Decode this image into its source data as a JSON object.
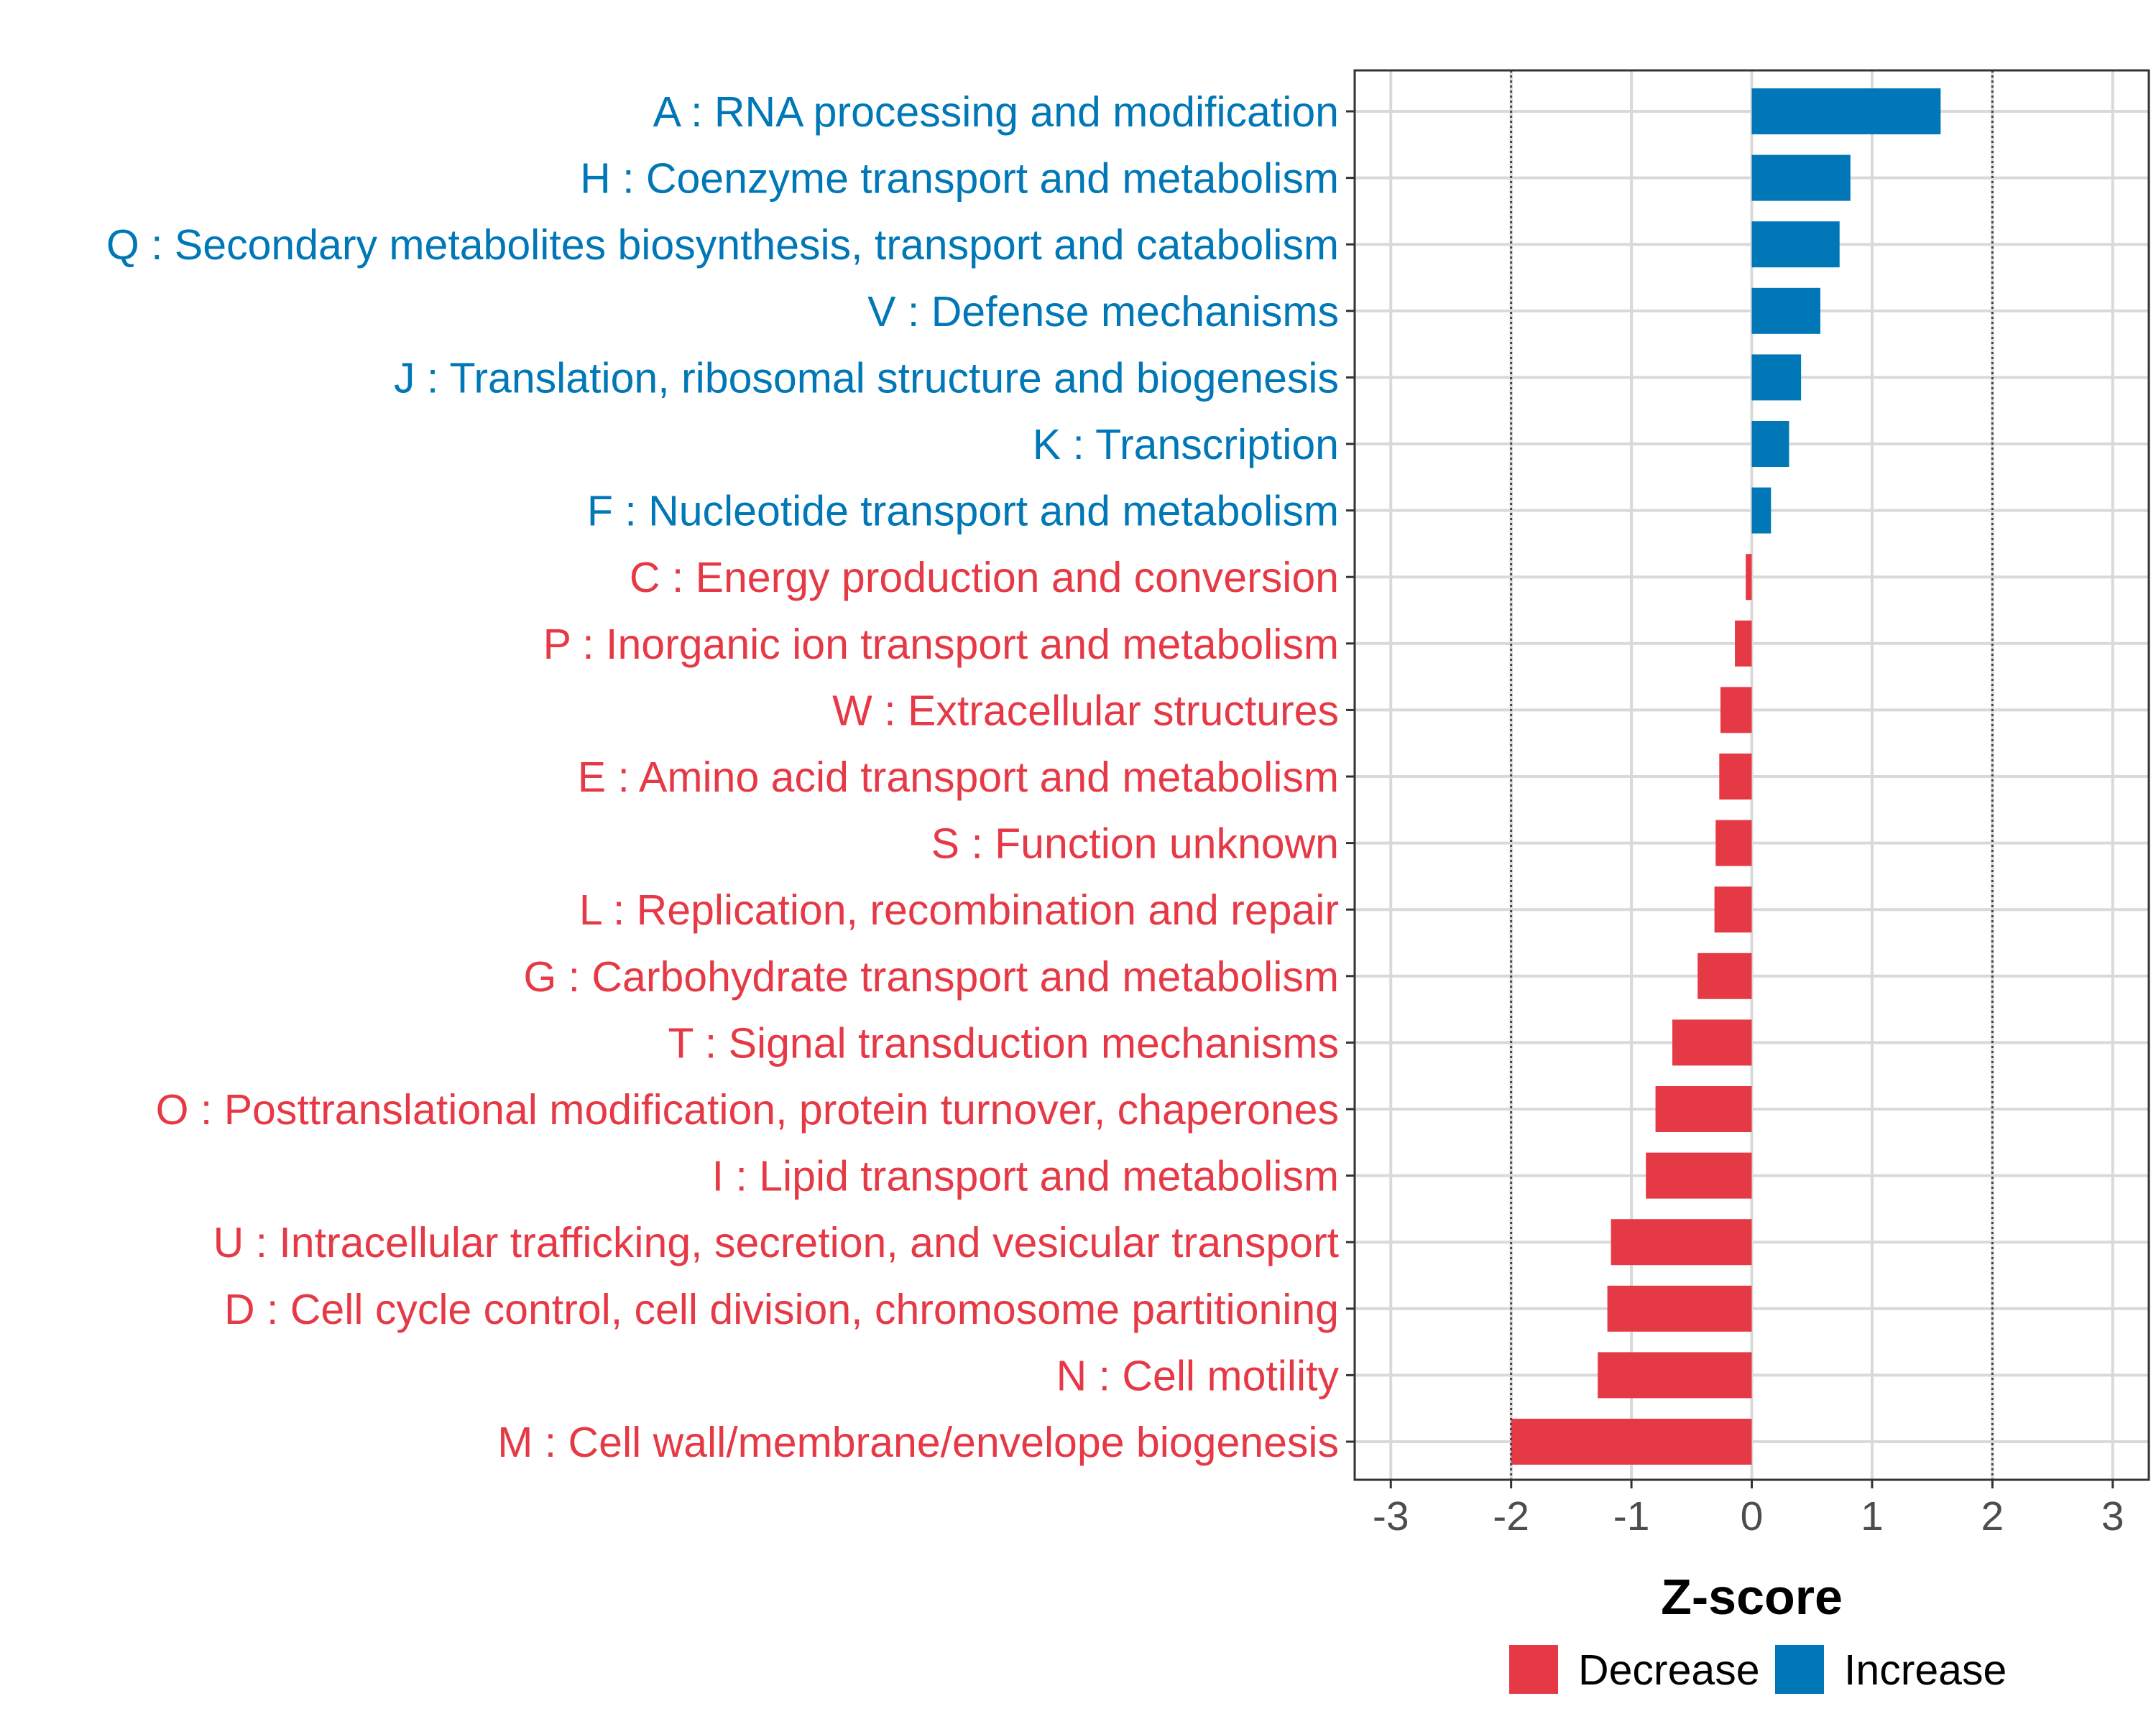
{
  "chart_data": {
    "type": "bar",
    "orientation": "horizontal",
    "xlabel": "Z-score",
    "xlim": [
      -3.3,
      3.3
    ],
    "xticks": [
      -3,
      -2,
      -1,
      0,
      1,
      2,
      3
    ],
    "reference_lines": [
      -2,
      2
    ],
    "grid": true,
    "legend_position": "bottom",
    "legend": [
      {
        "name": "Decrease",
        "color": "#E63946"
      },
      {
        "name": "Increase",
        "color": "#0077B6"
      }
    ],
    "categories": [
      "A : RNA processing and modification",
      "H : Coenzyme transport and metabolism",
      "Q : Secondary metabolites biosynthesis, transport and catabolism",
      "V : Defense mechanisms",
      "J : Translation, ribosomal structure and biogenesis",
      "K : Transcription",
      "F : Nucleotide transport and metabolism",
      "C : Energy production and conversion",
      "P : Inorganic ion transport and metabolism",
      "W : Extracellular structures",
      "E : Amino acid transport and metabolism",
      "S : Function unknown",
      "L : Replication, recombination and repair",
      "G : Carbohydrate transport and metabolism",
      "T : Signal transduction mechanisms",
      "O : Posttranslational modification, protein turnover, chaperones",
      "I : Lipid transport and metabolism",
      "U : Intracellular trafficking, secretion, and vesicular transport",
      "D : Cell cycle control, cell division, chromosome partitioning",
      "N : Cell motility",
      "M : Cell wall/membrane/envelope biogenesis"
    ],
    "values": [
      1.57,
      0.82,
      0.73,
      0.57,
      0.41,
      0.31,
      0.16,
      -0.05,
      -0.14,
      -0.26,
      -0.27,
      -0.3,
      -0.31,
      -0.45,
      -0.66,
      -0.8,
      -0.88,
      -1.17,
      -1.2,
      -1.28,
      -2.0
    ],
    "colors": {
      "increase": "#0077B6",
      "decrease": "#E63946"
    }
  }
}
